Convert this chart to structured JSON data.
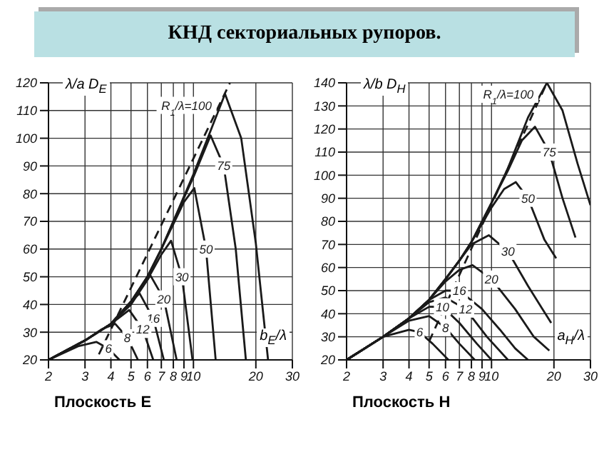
{
  "chart_data": [
    {
      "type": "line",
      "title": "КНД секториальных рупоров.",
      "subtitle": "Плоскость E",
      "xlabel": "b$_{E}$/λ",
      "ylabel": "λ/a D$_{E}$",
      "log": "x",
      "grid": true,
      "legend": false,
      "marker": "none",
      "line_style": "solid",
      "xlim": [
        2,
        30
      ],
      "xticks": [
        2,
        3,
        4,
        5,
        6,
        7,
        8,
        9,
        10,
        20,
        30
      ],
      "ylim": [
        20,
        120
      ],
      "yticks": [
        20,
        30,
        40,
        50,
        60,
        70,
        80,
        90,
        100,
        110,
        120
      ],
      "series": [
        {
          "name": "R$_{1}$/λ=100",
          "color": "#1a1a1a",
          "x": [
            2,
            3,
            4,
            5,
            6,
            7,
            8,
            10,
            12,
            14.2,
            17,
            20,
            22.9
          ],
          "values": [
            20,
            27,
            33,
            41,
            50,
            60,
            70,
            87,
            102,
            116,
            100,
            62,
            20
          ]
        },
        {
          "name": "75",
          "color": "#1a1a1a",
          "x": [
            2,
            3,
            4,
            5,
            6,
            7,
            8,
            10,
            12.1,
            14,
            16,
            17.9
          ],
          "values": [
            20,
            27,
            33,
            41,
            50,
            60,
            70,
            86,
            101,
            90,
            60,
            20
          ]
        },
        {
          "name": "50",
          "color": "#1a1a1a",
          "x": [
            2,
            3,
            4,
            5,
            6,
            7,
            8,
            9,
            10.1,
            11.5,
            12.8
          ],
          "values": [
            20,
            27,
            33,
            41,
            50,
            60,
            69,
            77,
            82,
            60,
            20
          ]
        },
        {
          "name": "30",
          "color": "#1a1a1a",
          "x": [
            2,
            3,
            4,
            5,
            6,
            7,
            7.8,
            8.8,
            9.9
          ],
          "values": [
            20,
            27,
            33,
            41,
            49,
            58,
            63,
            50,
            20
          ]
        },
        {
          "name": "20",
          "color": "#1a1a1a",
          "x": [
            2,
            3,
            4,
            5,
            6.2,
            7.2,
            8.3
          ],
          "values": [
            20,
            27,
            33,
            40,
            50.5,
            42,
            20
          ]
        },
        {
          "name": "16",
          "color": "#1a1a1a",
          "x": [
            2,
            3,
            4,
            5,
            5.5,
            6.4,
            7.2
          ],
          "values": [
            20,
            27,
            33,
            41,
            44,
            35,
            20
          ]
        },
        {
          "name": "12",
          "color": "#1a1a1a",
          "x": [
            2,
            3,
            4,
            4.9,
            5.7,
            6.4
          ],
          "values": [
            20,
            27,
            33,
            38,
            31,
            20
          ]
        },
        {
          "name": "8",
          "color": "#1a1a1a",
          "x": [
            2,
            3,
            3.6,
            4.2,
            4.8,
            5.4
          ],
          "values": [
            20,
            27,
            31,
            33,
            28,
            20
          ]
        },
        {
          "name": "6",
          "color": "#1a1a1a",
          "x": [
            2,
            2.8,
            3.4,
            3.9,
            4.4
          ],
          "values": [
            20,
            25,
            26.5,
            24,
            20
          ]
        },
        {
          "color": "#1a1a1a",
          "line_style": "dashed",
          "x": [
            3.5,
            15
          ],
          "values": [
            22,
            120
          ]
        }
      ]
    },
    {
      "type": "line",
      "subtitle": "Плоскость H",
      "xlabel": "a$_{H}$/λ",
      "ylabel": "λ/b D$_{H}$",
      "log": "x",
      "grid": true,
      "legend": false,
      "marker": "none",
      "line_style": "solid",
      "xlim": [
        2,
        30
      ],
      "xticks": [
        2,
        3,
        4,
        5,
        6,
        7,
        8,
        9,
        10,
        20,
        30
      ],
      "ylim": [
        20,
        140
      ],
      "yticks": [
        20,
        30,
        40,
        50,
        60,
        70,
        80,
        90,
        100,
        110,
        120,
        130,
        140
      ],
      "series": [
        {
          "name": "R$_{1}$/λ=100",
          "color": "#1a1a1a",
          "x": [
            2,
            3,
            4,
            5,
            6,
            7,
            8,
            10,
            12,
            15,
            18.5,
            22,
            26,
            30
          ],
          "values": [
            20,
            30,
            38,
            46,
            55,
            63,
            71,
            88,
            103,
            125,
            140,
            128,
            105,
            87
          ]
        },
        {
          "name": "75",
          "color": "#1a1a1a",
          "x": [
            2,
            3,
            4,
            5,
            6,
            7,
            8,
            10,
            12,
            14,
            16.2,
            19,
            22,
            25.4
          ],
          "values": [
            20,
            30,
            38,
            46,
            55,
            63,
            71,
            88,
            102,
            115,
            121,
            110,
            90,
            73
          ]
        },
        {
          "name": "50",
          "color": "#1a1a1a",
          "x": [
            2,
            3,
            4,
            5,
            6,
            7,
            8,
            10,
            11.5,
            13.1,
            15,
            18,
            20.5
          ],
          "values": [
            20,
            30,
            38,
            46,
            55,
            63,
            71,
            86,
            94,
            97,
            90,
            72,
            64
          ]
        },
        {
          "name": "30",
          "color": "#1a1a1a",
          "x": [
            2,
            3,
            4,
            5,
            6,
            7,
            8,
            9.7,
            12,
            15,
            19.4
          ],
          "values": [
            20,
            30,
            38,
            46,
            55,
            63,
            70,
            74,
            67,
            52,
            36
          ]
        },
        {
          "name": "20",
          "color": "#1a1a1a",
          "x": [
            2,
            3,
            4,
            5,
            6,
            7,
            8.1,
            10,
            13,
            16,
            19
          ],
          "values": [
            20,
            30,
            38,
            46,
            54,
            59,
            61,
            55,
            42,
            30,
            24
          ]
        },
        {
          "name": "16",
          "color": "#1a1a1a",
          "x": [
            2,
            3,
            4,
            5,
            6,
            7,
            9,
            11,
            13,
            15
          ],
          "values": [
            20,
            30,
            38,
            46,
            50,
            50,
            42,
            33,
            25,
            20
          ]
        },
        {
          "name": "12",
          "color": "#1a1a1a",
          "x": [
            2,
            3,
            4,
            5,
            6,
            7.5,
            9.5,
            12
          ],
          "values": [
            20,
            30,
            38,
            45,
            47,
            42,
            30,
            20
          ]
        },
        {
          "name": "10",
          "color": "#1a1a1a",
          "x": [
            2,
            3,
            4,
            5,
            5.8,
            7,
            8.5,
            10
          ],
          "values": [
            20,
            30,
            38,
            43,
            43,
            36,
            27,
            20
          ]
        },
        {
          "name": "8",
          "color": "#1a1a1a",
          "x": [
            2,
            3,
            4,
            5,
            6,
            7,
            8.3
          ],
          "values": [
            20,
            30,
            37,
            39,
            34,
            27,
            20
          ]
        },
        {
          "name": "6",
          "color": "#1a1a1a",
          "x": [
            2,
            3,
            4,
            4.5,
            5.2,
            6.2
          ],
          "values": [
            20,
            30,
            33,
            32,
            27,
            20
          ]
        },
        {
          "color": "#1a1a1a",
          "line_style": "dashed",
          "x": [
            5,
            18.5
          ],
          "values": [
            28,
            140
          ]
        }
      ]
    }
  ]
}
